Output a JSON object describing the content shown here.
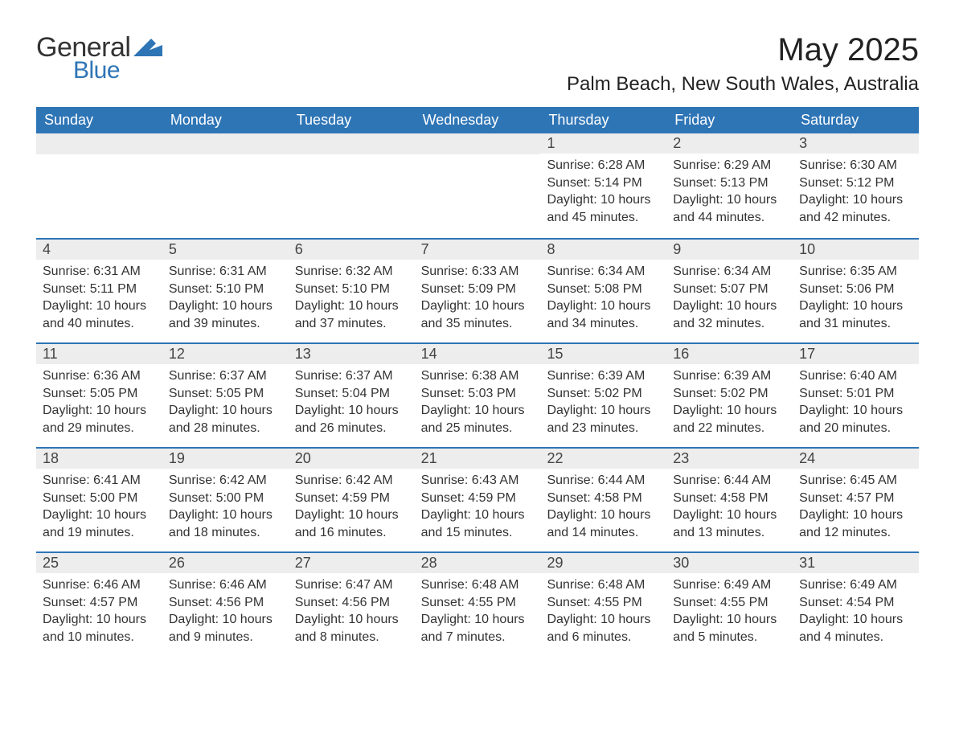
{
  "logo": {
    "text1": "General",
    "text2": "Blue",
    "flag_color": "#2e75b6"
  },
  "title": "May 2025",
  "location": "Palm Beach, New South Wales, Australia",
  "colors": {
    "header_bg": "#2e75b6",
    "header_text": "#ffffff",
    "row_divider": "#2e75b6",
    "daynum_bg": "#ededed",
    "text": "#333333",
    "background": "#ffffff"
  },
  "dow": [
    "Sunday",
    "Monday",
    "Tuesday",
    "Wednesday",
    "Thursday",
    "Friday",
    "Saturday"
  ],
  "weeks": [
    [
      {
        "empty": true
      },
      {
        "empty": true
      },
      {
        "empty": true
      },
      {
        "empty": true
      },
      {
        "n": "1",
        "sunrise": "6:28 AM",
        "sunset": "5:14 PM",
        "daylight": "10 hours and 45 minutes."
      },
      {
        "n": "2",
        "sunrise": "6:29 AM",
        "sunset": "5:13 PM",
        "daylight": "10 hours and 44 minutes."
      },
      {
        "n": "3",
        "sunrise": "6:30 AM",
        "sunset": "5:12 PM",
        "daylight": "10 hours and 42 minutes."
      }
    ],
    [
      {
        "n": "4",
        "sunrise": "6:31 AM",
        "sunset": "5:11 PM",
        "daylight": "10 hours and 40 minutes."
      },
      {
        "n": "5",
        "sunrise": "6:31 AM",
        "sunset": "5:10 PM",
        "daylight": "10 hours and 39 minutes."
      },
      {
        "n": "6",
        "sunrise": "6:32 AM",
        "sunset": "5:10 PM",
        "daylight": "10 hours and 37 minutes."
      },
      {
        "n": "7",
        "sunrise": "6:33 AM",
        "sunset": "5:09 PM",
        "daylight": "10 hours and 35 minutes."
      },
      {
        "n": "8",
        "sunrise": "6:34 AM",
        "sunset": "5:08 PM",
        "daylight": "10 hours and 34 minutes."
      },
      {
        "n": "9",
        "sunrise": "6:34 AM",
        "sunset": "5:07 PM",
        "daylight": "10 hours and 32 minutes."
      },
      {
        "n": "10",
        "sunrise": "6:35 AM",
        "sunset": "5:06 PM",
        "daylight": "10 hours and 31 minutes."
      }
    ],
    [
      {
        "n": "11",
        "sunrise": "6:36 AM",
        "sunset": "5:05 PM",
        "daylight": "10 hours and 29 minutes."
      },
      {
        "n": "12",
        "sunrise": "6:37 AM",
        "sunset": "5:05 PM",
        "daylight": "10 hours and 28 minutes."
      },
      {
        "n": "13",
        "sunrise": "6:37 AM",
        "sunset": "5:04 PM",
        "daylight": "10 hours and 26 minutes."
      },
      {
        "n": "14",
        "sunrise": "6:38 AM",
        "sunset": "5:03 PM",
        "daylight": "10 hours and 25 minutes."
      },
      {
        "n": "15",
        "sunrise": "6:39 AM",
        "sunset": "5:02 PM",
        "daylight": "10 hours and 23 minutes."
      },
      {
        "n": "16",
        "sunrise": "6:39 AM",
        "sunset": "5:02 PM",
        "daylight": "10 hours and 22 minutes."
      },
      {
        "n": "17",
        "sunrise": "6:40 AM",
        "sunset": "5:01 PM",
        "daylight": "10 hours and 20 minutes."
      }
    ],
    [
      {
        "n": "18",
        "sunrise": "6:41 AM",
        "sunset": "5:00 PM",
        "daylight": "10 hours and 19 minutes."
      },
      {
        "n": "19",
        "sunrise": "6:42 AM",
        "sunset": "5:00 PM",
        "daylight": "10 hours and 18 minutes."
      },
      {
        "n": "20",
        "sunrise": "6:42 AM",
        "sunset": "4:59 PM",
        "daylight": "10 hours and 16 minutes."
      },
      {
        "n": "21",
        "sunrise": "6:43 AM",
        "sunset": "4:59 PM",
        "daylight": "10 hours and 15 minutes."
      },
      {
        "n": "22",
        "sunrise": "6:44 AM",
        "sunset": "4:58 PM",
        "daylight": "10 hours and 14 minutes."
      },
      {
        "n": "23",
        "sunrise": "6:44 AM",
        "sunset": "4:58 PM",
        "daylight": "10 hours and 13 minutes."
      },
      {
        "n": "24",
        "sunrise": "6:45 AM",
        "sunset": "4:57 PM",
        "daylight": "10 hours and 12 minutes."
      }
    ],
    [
      {
        "n": "25",
        "sunrise": "6:46 AM",
        "sunset": "4:57 PM",
        "daylight": "10 hours and 10 minutes."
      },
      {
        "n": "26",
        "sunrise": "6:46 AM",
        "sunset": "4:56 PM",
        "daylight": "10 hours and 9 minutes."
      },
      {
        "n": "27",
        "sunrise": "6:47 AM",
        "sunset": "4:56 PM",
        "daylight": "10 hours and 8 minutes."
      },
      {
        "n": "28",
        "sunrise": "6:48 AM",
        "sunset": "4:55 PM",
        "daylight": "10 hours and 7 minutes."
      },
      {
        "n": "29",
        "sunrise": "6:48 AM",
        "sunset": "4:55 PM",
        "daylight": "10 hours and 6 minutes."
      },
      {
        "n": "30",
        "sunrise": "6:49 AM",
        "sunset": "4:55 PM",
        "daylight": "10 hours and 5 minutes."
      },
      {
        "n": "31",
        "sunrise": "6:49 AM",
        "sunset": "4:54 PM",
        "daylight": "10 hours and 4 minutes."
      }
    ]
  ],
  "labels": {
    "sunrise_prefix": "Sunrise: ",
    "sunset_prefix": "Sunset: ",
    "daylight_prefix": "Daylight: "
  },
  "typography": {
    "title_fontsize": 40,
    "location_fontsize": 24,
    "dow_fontsize": 18,
    "daynum_fontsize": 18,
    "detail_fontsize": 16
  }
}
